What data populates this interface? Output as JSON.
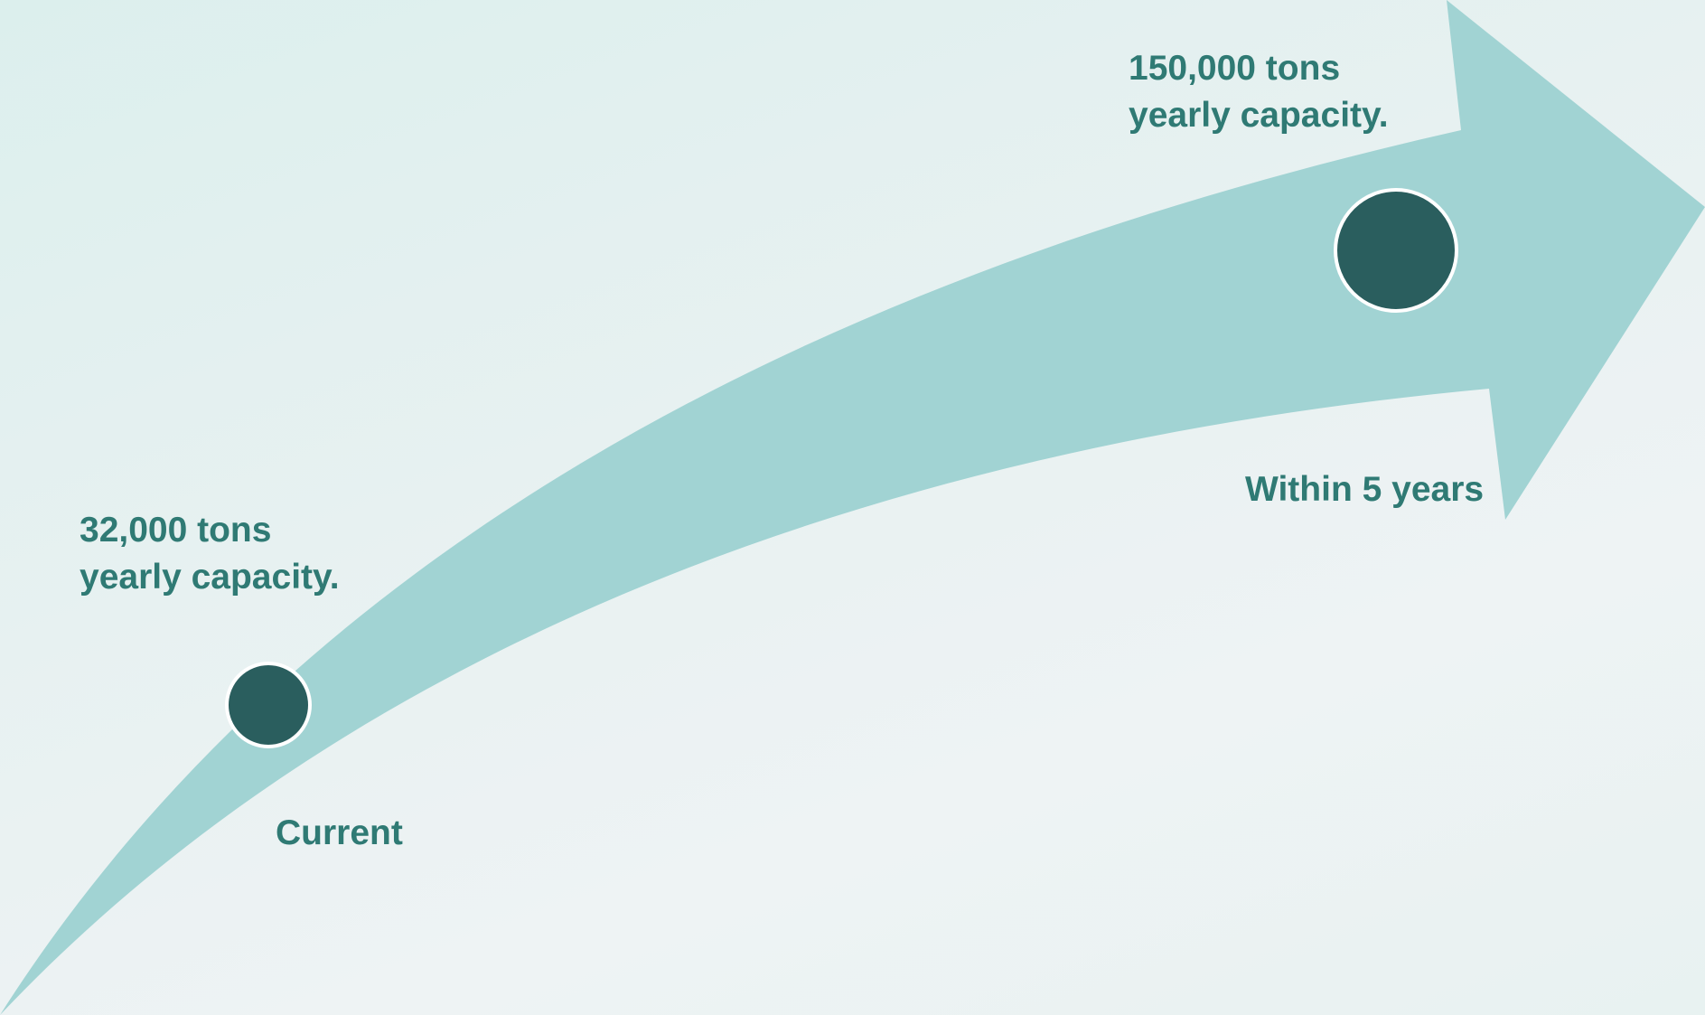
{
  "milestones": [
    {
      "capacity_line1": "32,000 tons",
      "capacity_line2": "yearly capacity.",
      "time_label": "Current"
    },
    {
      "capacity_line1": "150,000 tons",
      "capacity_line2": "yearly capacity.",
      "time_label": "Within 5 years"
    }
  ],
  "colors": {
    "arrow": "#a1d3d3",
    "marker_fill": "#2a5e5e",
    "marker_stroke": "#ffffff",
    "text": "#2f7a74"
  }
}
